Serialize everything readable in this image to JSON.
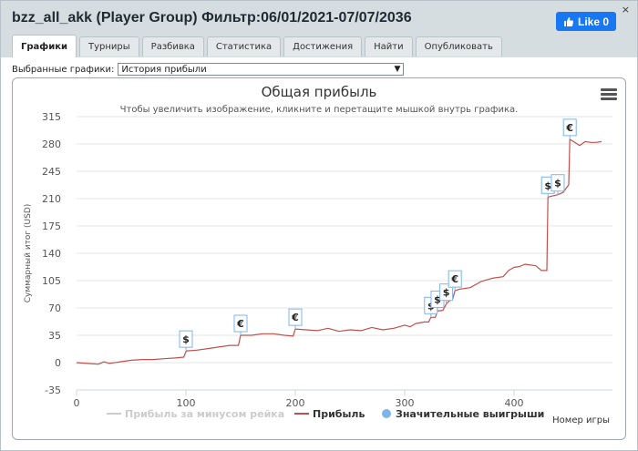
{
  "window": {
    "title": "bzz_all_akk (Player Group) Фильтр:06/01/2021-07/07/2036",
    "close_label": "×",
    "fb_like": "Like 0"
  },
  "tabs": [
    {
      "label": "Графики",
      "active": true
    },
    {
      "label": "Турниры",
      "active": false
    },
    {
      "label": "Разбивка",
      "active": false
    },
    {
      "label": "Статистика",
      "active": false
    },
    {
      "label": "Достижения",
      "active": false
    },
    {
      "label": "Найти",
      "active": false
    },
    {
      "label": "Опубликовать",
      "active": false
    }
  ],
  "selector": {
    "label": "Выбранные графики:",
    "value": "История прибыли"
  },
  "colors": {
    "line": "#c0504d",
    "grid": "#e6e6e6",
    "marker_border": "#7cb5ec",
    "legend_disabled": "#cccccc",
    "legend_active": "#333333",
    "legend_dot": "#7cb5ec"
  },
  "chart_data": {
    "type": "line",
    "title": "Общая прибыль",
    "subtitle": "Чтобы увеличить изображение, кликните и перетащите мышкой внутрь графика.",
    "xlabel": "Номер игры",
    "ylabel": "Суммарный итог (USD)",
    "xlim": [
      0,
      490
    ],
    "ylim": [
      -35,
      315
    ],
    "x_ticks": [
      0,
      100,
      200,
      300,
      400
    ],
    "y_ticks": [
      -35,
      0,
      35,
      70,
      105,
      140,
      175,
      210,
      245,
      280,
      315
    ],
    "grid": true,
    "legend_position": "bottom",
    "legend": [
      {
        "label": "Прибыль за минусом рейка",
        "enabled": false
      },
      {
        "label": "Прибыль",
        "enabled": true
      },
      {
        "label": "Значительные выигрыши",
        "enabled": true
      }
    ],
    "series": [
      {
        "name": "Прибыль",
        "points": [
          [
            0,
            0
          ],
          [
            10,
            -1
          ],
          [
            20,
            -2
          ],
          [
            25,
            1
          ],
          [
            30,
            -1
          ],
          [
            40,
            1
          ],
          [
            50,
            3
          ],
          [
            60,
            4
          ],
          [
            70,
            4
          ],
          [
            80,
            5
          ],
          [
            90,
            6
          ],
          [
            98,
            7
          ],
          [
            100,
            14
          ],
          [
            101,
            15
          ],
          [
            110,
            16
          ],
          [
            120,
            18
          ],
          [
            130,
            20
          ],
          [
            140,
            22
          ],
          [
            148,
            22
          ],
          [
            150,
            35
          ],
          [
            160,
            35
          ],
          [
            170,
            37
          ],
          [
            180,
            37
          ],
          [
            190,
            35
          ],
          [
            198,
            34
          ],
          [
            200,
            43
          ],
          [
            210,
            42
          ],
          [
            220,
            41
          ],
          [
            230,
            44
          ],
          [
            240,
            40
          ],
          [
            250,
            42
          ],
          [
            260,
            41
          ],
          [
            270,
            45
          ],
          [
            280,
            42
          ],
          [
            290,
            44
          ],
          [
            300,
            48
          ],
          [
            305,
            46
          ],
          [
            310,
            50
          ],
          [
            318,
            52
          ],
          [
            322,
            52
          ],
          [
            324,
            58
          ],
          [
            328,
            58
          ],
          [
            330,
            66
          ],
          [
            335,
            67
          ],
          [
            338,
            75
          ],
          [
            340,
            78
          ],
          [
            344,
            82
          ],
          [
            346,
            92
          ],
          [
            350,
            94
          ],
          [
            360,
            96
          ],
          [
            370,
            104
          ],
          [
            380,
            108
          ],
          [
            390,
            110
          ],
          [
            395,
            118
          ],
          [
            400,
            122
          ],
          [
            405,
            123
          ],
          [
            410,
            126
          ],
          [
            420,
            124
          ],
          [
            425,
            118
          ],
          [
            430,
            118
          ],
          [
            431,
            212
          ],
          [
            440,
            215
          ],
          [
            445,
            218
          ],
          [
            450,
            228
          ],
          [
            451,
            286
          ],
          [
            460,
            278
          ],
          [
            465,
            283
          ],
          [
            470,
            282
          ],
          [
            475,
            282
          ],
          [
            480,
            283
          ]
        ]
      }
    ],
    "markers": [
      {
        "x": 100,
        "y": 15,
        "symbol": "$"
      },
      {
        "x": 150,
        "y": 35,
        "symbol": "€"
      },
      {
        "x": 200,
        "y": 43,
        "symbol": "€"
      },
      {
        "x": 324,
        "y": 58,
        "symbol": "$"
      },
      {
        "x": 330,
        "y": 66,
        "symbol": "$"
      },
      {
        "x": 338,
        "y": 75,
        "symbol": "$"
      },
      {
        "x": 346,
        "y": 92,
        "symbol": "€"
      },
      {
        "x": 431,
        "y": 212,
        "symbol": "$"
      },
      {
        "x": 440,
        "y": 215,
        "symbol": "$"
      },
      {
        "x": 451,
        "y": 286,
        "symbol": "€"
      }
    ]
  }
}
